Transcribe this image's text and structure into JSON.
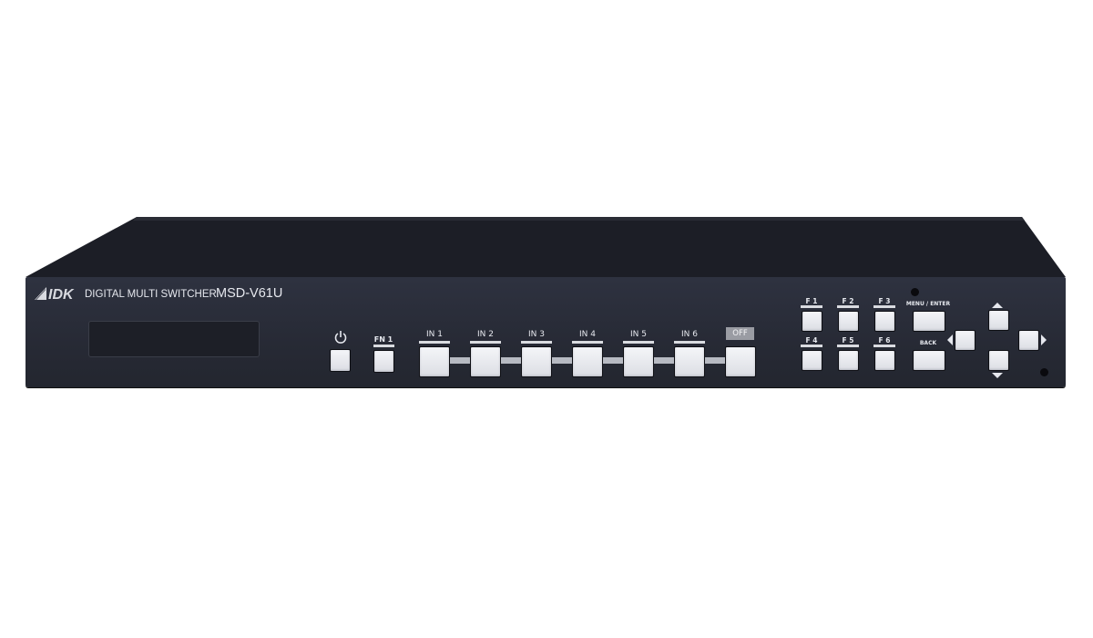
{
  "device": {
    "brand": "IDK",
    "product_line": "DIGITAL MULTI SWITCHER",
    "model": "MSD-V61U",
    "colors": {
      "chassis": "#2a2d38",
      "button": "#eceef2"
    }
  },
  "controls": {
    "power_icon": "power-icon",
    "fn1_label": "FN 1",
    "inputs": [
      "IN 1",
      "IN 2",
      "IN 3",
      "IN 4",
      "IN 5",
      "IN 6"
    ],
    "off_label": "OFF",
    "functions": [
      "F 1",
      "F 2",
      "F 3",
      "F 4",
      "F 5",
      "F 6"
    ],
    "menu_enter_label": "MENU / ENTER",
    "back_label": "BACK",
    "arrows": [
      "arrow-up-icon",
      "arrow-left-icon",
      "arrow-right-icon",
      "arrow-down-icon"
    ]
  }
}
